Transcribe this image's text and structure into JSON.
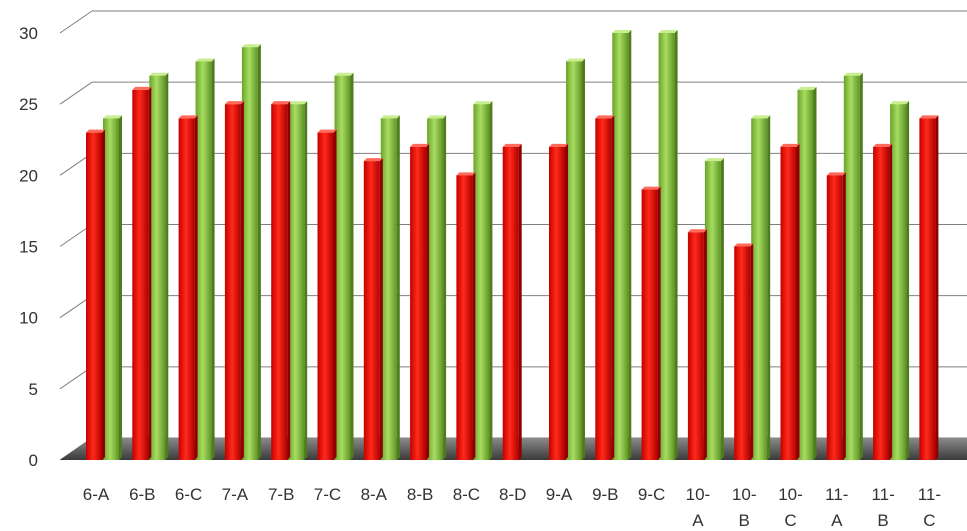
{
  "chart_data": {
    "type": "bar",
    "style": "3d-clustered-column",
    "categories": [
      [
        "6-A"
      ],
      [
        "6-B"
      ],
      [
        "6-C"
      ],
      [
        "7-A"
      ],
      [
        "7-B"
      ],
      [
        "7-C"
      ],
      [
        "8-A"
      ],
      [
        "8-B"
      ],
      [
        "8-C"
      ],
      [
        "8-D"
      ],
      [
        "9-A"
      ],
      [
        "9-B"
      ],
      [
        "9-C"
      ],
      [
        "10-",
        "A"
      ],
      [
        "10-",
        "B"
      ],
      [
        "10-",
        "C"
      ],
      [
        "11-",
        "A"
      ],
      [
        "11-",
        "B"
      ],
      [
        "11-",
        "C"
      ]
    ],
    "series": [
      {
        "color": "#e81010",
        "values": [
          23,
          26,
          24,
          25,
          25,
          23,
          21,
          22,
          20,
          22,
          22,
          24,
          19,
          16,
          15,
          22,
          20,
          22,
          24
        ]
      },
      {
        "color": "#8ccc3c",
        "values": [
          24,
          27,
          28,
          29,
          25,
          27,
          24,
          24,
          25,
          0,
          28,
          30,
          30,
          21,
          24,
          26,
          27,
          25,
          null
        ]
      }
    ],
    "y_ticks": [
      "0",
      "5",
      "10",
      "15",
      "20",
      "25",
      "30"
    ],
    "ylim": [
      0,
      30
    ],
    "grid": true,
    "legend": "none"
  }
}
